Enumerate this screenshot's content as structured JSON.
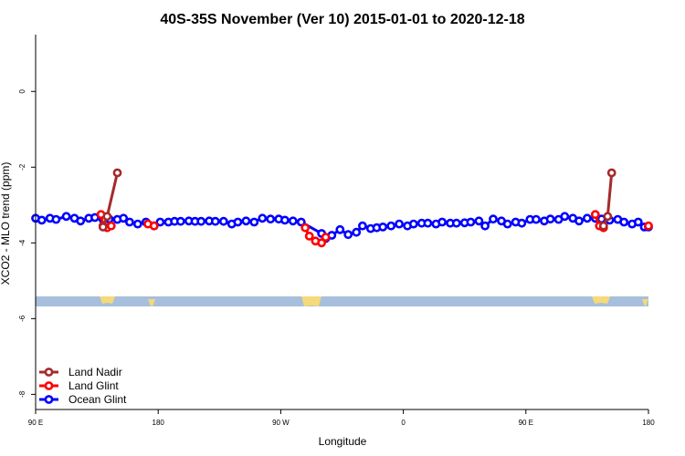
{
  "chart_data": {
    "type": "line",
    "title": "40S-35S November (Ver 10)   2015-01-01 to 2020-12-18",
    "xlabel": "Longitude",
    "ylabel": "XCO2 - MLO trend (ppm)",
    "xlim": [
      0,
      300
    ],
    "ylim": [
      -8.4,
      1.5
    ],
    "x_ticks": [
      {
        "value": 0,
        "label": "90 E"
      },
      {
        "value": 60,
        "label": "180"
      },
      {
        "value": 120,
        "label": "90 W"
      },
      {
        "value": 180,
        "label": "0"
      },
      {
        "value": 240,
        "label": "90 E"
      },
      {
        "value": 300,
        "label": "180"
      }
    ],
    "y_ticks": [
      {
        "value": 0,
        "label": "0"
      },
      {
        "value": -2,
        "label": "-2"
      },
      {
        "value": -4,
        "label": "-4"
      },
      {
        "value": -6,
        "label": "-6"
      },
      {
        "value": -8,
        "label": "-8"
      }
    ],
    "grid": false,
    "legend": "bottom-left",
    "series": [
      {
        "name": "Land Nadir",
        "color": "#a52a2a",
        "points": [
          [
            33,
            -3.58
          ],
          [
            35,
            -3.3
          ],
          [
            40,
            -2.15
          ],
          [
            278,
            -3.55
          ],
          [
            280,
            -3.3
          ],
          [
            282,
            -2.15
          ]
        ]
      },
      {
        "name": "Land Glint",
        "color": "#ff0000",
        "points": [
          [
            32,
            -3.25
          ],
          [
            33,
            -3.55
          ],
          [
            35,
            -3.6
          ],
          [
            37,
            -3.55
          ],
          [
            55,
            -3.5
          ],
          [
            58,
            -3.55
          ],
          [
            132,
            -3.6
          ],
          [
            134,
            -3.82
          ],
          [
            137,
            -3.95
          ],
          [
            140,
            -4.0
          ],
          [
            142,
            -3.85
          ],
          [
            274,
            -3.25
          ],
          [
            276,
            -3.55
          ],
          [
            278,
            -3.6
          ],
          [
            300,
            -3.55
          ]
        ]
      },
      {
        "name": "Ocean Glint",
        "color": "#0000ff",
        "points": [
          [
            0,
            -3.35
          ],
          [
            3,
            -3.4
          ],
          [
            7,
            -3.35
          ],
          [
            10,
            -3.38
          ],
          [
            15,
            -3.3
          ],
          [
            19,
            -3.35
          ],
          [
            22,
            -3.42
          ],
          [
            26,
            -3.35
          ],
          [
            29,
            -3.33
          ],
          [
            33,
            -3.38
          ],
          [
            36,
            -3.37
          ],
          [
            40,
            -3.38
          ],
          [
            43,
            -3.35
          ],
          [
            46,
            -3.45
          ],
          [
            50,
            -3.5
          ],
          [
            54,
            -3.45
          ],
          [
            58,
            -3.55
          ],
          [
            61,
            -3.45
          ],
          [
            65,
            -3.45
          ],
          [
            68,
            -3.43
          ],
          [
            71,
            -3.43
          ],
          [
            75,
            -3.42
          ],
          [
            78,
            -3.43
          ],
          [
            81,
            -3.43
          ],
          [
            85,
            -3.42
          ],
          [
            88,
            -3.43
          ],
          [
            92,
            -3.43
          ],
          [
            96,
            -3.5
          ],
          [
            99,
            -3.45
          ],
          [
            103,
            -3.42
          ],
          [
            107,
            -3.45
          ],
          [
            111,
            -3.35
          ],
          [
            115,
            -3.37
          ],
          [
            119,
            -3.37
          ],
          [
            122,
            -3.4
          ],
          [
            126,
            -3.42
          ],
          [
            130,
            -3.45
          ],
          [
            140,
            -3.75
          ],
          [
            142,
            -3.88
          ],
          [
            145,
            -3.8
          ],
          [
            149,
            -3.65
          ],
          [
            153,
            -3.78
          ],
          [
            157,
            -3.72
          ],
          [
            160,
            -3.55
          ],
          [
            164,
            -3.62
          ],
          [
            167,
            -3.6
          ],
          [
            170,
            -3.58
          ],
          [
            174,
            -3.55
          ],
          [
            178,
            -3.5
          ],
          [
            182,
            -3.55
          ],
          [
            185,
            -3.5
          ],
          [
            189,
            -3.48
          ],
          [
            192,
            -3.48
          ],
          [
            196,
            -3.5
          ],
          [
            199,
            -3.45
          ],
          [
            203,
            -3.48
          ],
          [
            206,
            -3.48
          ],
          [
            210,
            -3.47
          ],
          [
            213,
            -3.45
          ],
          [
            217,
            -3.42
          ],
          [
            220,
            -3.55
          ],
          [
            224,
            -3.37
          ],
          [
            228,
            -3.42
          ],
          [
            231,
            -3.5
          ],
          [
            235,
            -3.45
          ],
          [
            238,
            -3.48
          ],
          [
            242,
            -3.38
          ],
          [
            245,
            -3.38
          ],
          [
            249,
            -3.42
          ],
          [
            252,
            -3.37
          ],
          [
            256,
            -3.38
          ],
          [
            259,
            -3.3
          ],
          [
            263,
            -3.35
          ],
          [
            266,
            -3.42
          ],
          [
            270,
            -3.35
          ],
          [
            274,
            -3.35
          ],
          [
            277,
            -3.37
          ],
          [
            281,
            -3.4
          ],
          [
            285,
            -3.38
          ],
          [
            288,
            -3.45
          ],
          [
            292,
            -3.5
          ],
          [
            295,
            -3.45
          ],
          [
            298,
            -3.58
          ],
          [
            300,
            -3.58
          ]
        ]
      }
    ]
  }
}
